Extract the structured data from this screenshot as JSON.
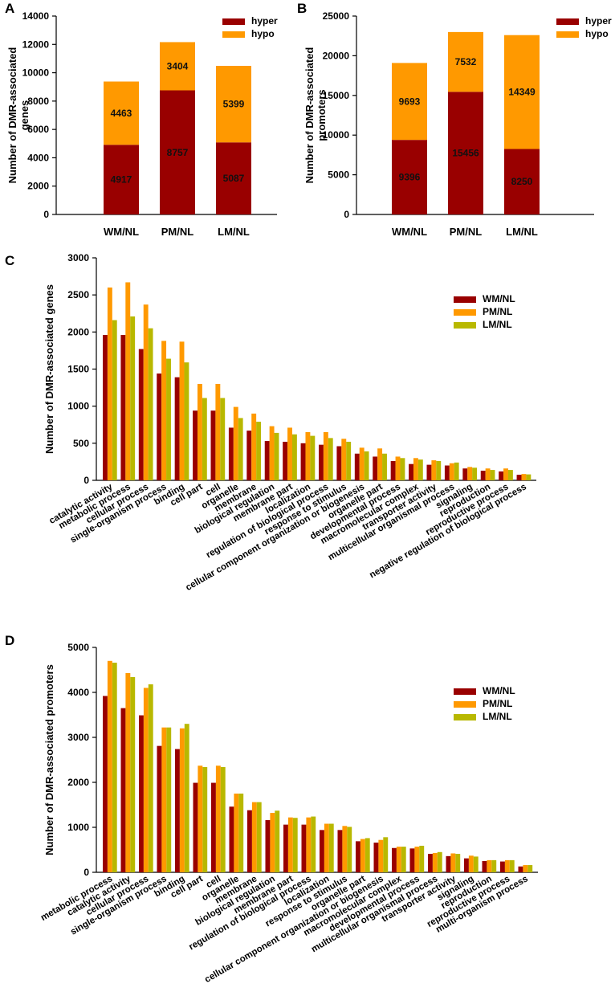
{
  "colors": {
    "hyper": "#990000",
    "hypo": "#ff9900",
    "wm": "#990000",
    "pm": "#ff9900",
    "lm": "#b8b800"
  },
  "chart_data": [
    {
      "panel": "A",
      "type": "bar",
      "stacked": true,
      "ylabel": "Number of DMR-associated genes",
      "ylim": [
        0,
        14000
      ],
      "yticks": [
        0,
        2000,
        4000,
        6000,
        8000,
        10000,
        12000,
        14000
      ],
      "categories": [
        "WM/NL",
        "PM/NL",
        "LM/NL"
      ],
      "series": [
        {
          "name": "hyper",
          "values": [
            4917,
            8757,
            5087
          ],
          "labels": [
            "4917",
            "8757",
            "5087"
          ]
        },
        {
          "name": "hypo",
          "values": [
            4463,
            3404,
            5399
          ],
          "labels": [
            "4463",
            "3404",
            "5399"
          ]
        }
      ],
      "legend": [
        "hyper",
        "hypo"
      ],
      "legend_position": "top-right"
    },
    {
      "panel": "B",
      "type": "bar",
      "stacked": true,
      "ylabel": "Number of DMR-associated promoters",
      "ylim": [
        0,
        25000
      ],
      "yticks": [
        0,
        5000,
        10000,
        15000,
        20000,
        25000
      ],
      "categories": [
        "WM/NL",
        "PM/NL",
        "LM/NL"
      ],
      "series": [
        {
          "name": "hyper",
          "values": [
            9396,
            15456,
            8250
          ],
          "labels": [
            "9396",
            "15456",
            "8250"
          ]
        },
        {
          "name": "hypo",
          "values": [
            9693,
            7532,
            14349
          ],
          "labels": [
            "9693",
            "7532",
            "14349"
          ]
        }
      ],
      "legend": [
        "hyper",
        "hypo"
      ],
      "legend_position": "top-right"
    },
    {
      "panel": "C",
      "type": "bar",
      "stacked": false,
      "ylabel": "Number of DMR-associated genes",
      "ylim": [
        0,
        3000
      ],
      "yticks": [
        0,
        500,
        1000,
        1500,
        2000,
        2500,
        3000
      ],
      "categories": [
        "catalytic activity",
        "metabolic process",
        "cellular process",
        "single-organism process",
        "binding",
        "cell part",
        "cell",
        "organelle",
        "membrane",
        "biological regulation",
        "membrane part",
        "localization",
        "regulation of biological process",
        "response to stimulus",
        "cellular component organization or biogenesis",
        "organelle part",
        "developmental process",
        "macromolecular complex",
        "transporter activity",
        "multicellular organismal process",
        "signaling",
        "reproduction",
        "reproductive process",
        "negative regulation of biological process"
      ],
      "series": [
        {
          "name": "WM/NL",
          "values": [
            1960,
            1960,
            1770,
            1440,
            1390,
            940,
            940,
            710,
            670,
            530,
            520,
            500,
            480,
            460,
            360,
            320,
            260,
            220,
            210,
            200,
            160,
            130,
            120,
            75
          ]
        },
        {
          "name": "PM/NL",
          "values": [
            2600,
            2670,
            2370,
            1880,
            1870,
            1300,
            1300,
            990,
            900,
            730,
            710,
            650,
            650,
            560,
            440,
            430,
            320,
            300,
            270,
            230,
            180,
            160,
            160,
            85
          ]
        },
        {
          "name": "LM/NL",
          "values": [
            2160,
            2210,
            2050,
            1640,
            1590,
            1110,
            1110,
            840,
            790,
            640,
            620,
            600,
            570,
            520,
            390,
            360,
            300,
            280,
            260,
            240,
            170,
            140,
            140,
            80
          ]
        }
      ],
      "legend": [
        "WM/NL",
        "PM/NL",
        "LM/NL"
      ],
      "legend_position": "top-right"
    },
    {
      "panel": "D",
      "type": "bar",
      "stacked": false,
      "ylabel": "Number of DMR-associated promoters",
      "ylim": [
        0,
        5000
      ],
      "yticks": [
        0,
        1000,
        2000,
        3000,
        4000,
        5000
      ],
      "categories": [
        "metabolic process",
        "catalytic activity",
        "cellular process",
        "single-organism process",
        "binding",
        "cell part",
        "cell",
        "organelle",
        "membrane",
        "biological regulation",
        "membrane part",
        "regulation of biological process",
        "localization",
        "response to stimulus",
        "organelle part",
        "cellular component organization or biogenesis",
        "macromolecular complex",
        "developmental process",
        "multicellular organismal process",
        "transporter activity",
        "signaling",
        "reproduction",
        "reproductive process",
        "multi-organism process"
      ],
      "series": [
        {
          "name": "WM/NL",
          "values": [
            3920,
            3650,
            3490,
            2810,
            2740,
            1990,
            1990,
            1460,
            1380,
            1160,
            1060,
            1060,
            940,
            940,
            690,
            660,
            540,
            530,
            410,
            360,
            310,
            250,
            240,
            130
          ]
        },
        {
          "name": "PM/NL",
          "values": [
            4700,
            4430,
            4100,
            3220,
            3200,
            2370,
            2370,
            1750,
            1560,
            1320,
            1220,
            1220,
            1080,
            1030,
            740,
            720,
            570,
            570,
            430,
            420,
            370,
            270,
            270,
            160
          ]
        },
        {
          "name": "LM/NL",
          "values": [
            4660,
            4340,
            4180,
            3220,
            3300,
            2340,
            2340,
            1750,
            1560,
            1370,
            1210,
            1240,
            1080,
            1010,
            760,
            780,
            570,
            590,
            450,
            410,
            350,
            270,
            270,
            160
          ]
        }
      ],
      "legend": [
        "WM/NL",
        "PM/NL",
        "LM/NL"
      ],
      "legend_position": "top-right"
    }
  ]
}
